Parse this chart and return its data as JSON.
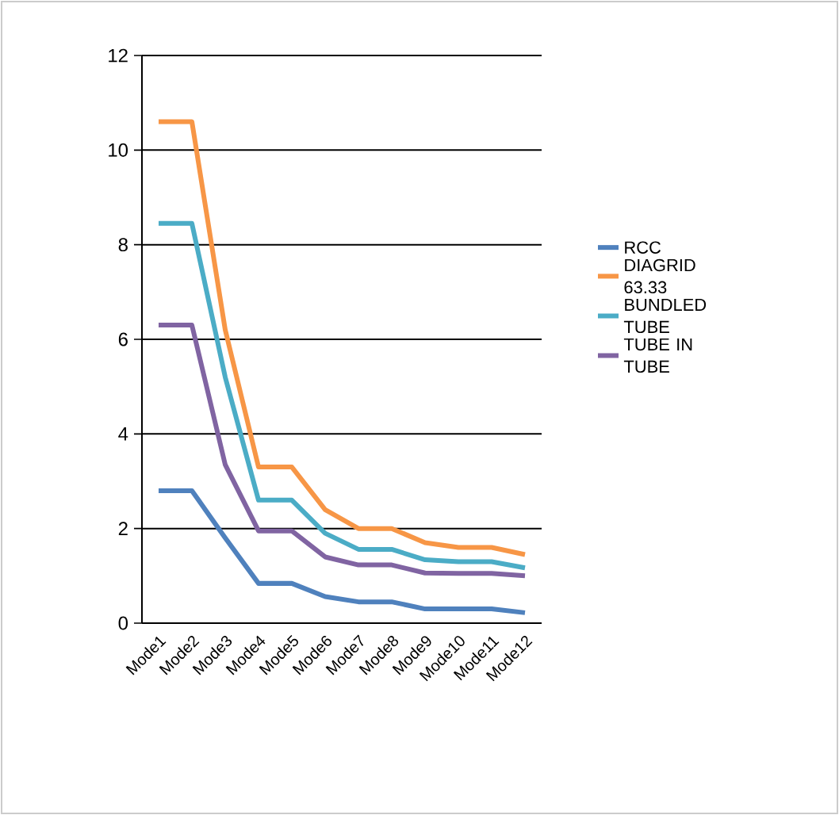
{
  "chart_data": {
    "type": "line",
    "categories": [
      "Mode1",
      "Mode2",
      "Mode3",
      "Mode4",
      "Mode5",
      "Mode6",
      "Mode7",
      "Mode8",
      "Mode9",
      "Mode10",
      "Mode11",
      "Mode12"
    ],
    "series": [
      {
        "name": "RCC",
        "color": "#4f81bd",
        "values": [
          2.8,
          2.8,
          1.8,
          0.84,
          0.84,
          0.56,
          0.45,
          0.45,
          0.3,
          0.3,
          0.3,
          0.22
        ]
      },
      {
        "name": "DIAGRID 63.33",
        "color": "#f79646",
        "values": [
          10.6,
          10.6,
          6.2,
          3.3,
          3.3,
          2.4,
          2.0,
          2.0,
          1.7,
          1.6,
          1.6,
          1.45
        ]
      },
      {
        "name": "BUNDLED TUBE",
        "color": "#4bacc6",
        "values": [
          8.45,
          8.45,
          5.2,
          2.6,
          2.6,
          1.9,
          1.56,
          1.56,
          1.34,
          1.3,
          1.3,
          1.17
        ]
      },
      {
        "name": "TUBE IN TUBE",
        "color": "#8064a2",
        "values": [
          6.3,
          6.3,
          3.35,
          1.95,
          1.95,
          1.4,
          1.23,
          1.23,
          1.06,
          1.05,
          1.05,
          1.0
        ]
      }
    ],
    "ylim": [
      0,
      12
    ],
    "yticks": [
      0,
      2,
      4,
      6,
      8,
      10,
      12
    ],
    "grid": "y",
    "legend": "right",
    "marker": "none",
    "line_style": "solid"
  }
}
